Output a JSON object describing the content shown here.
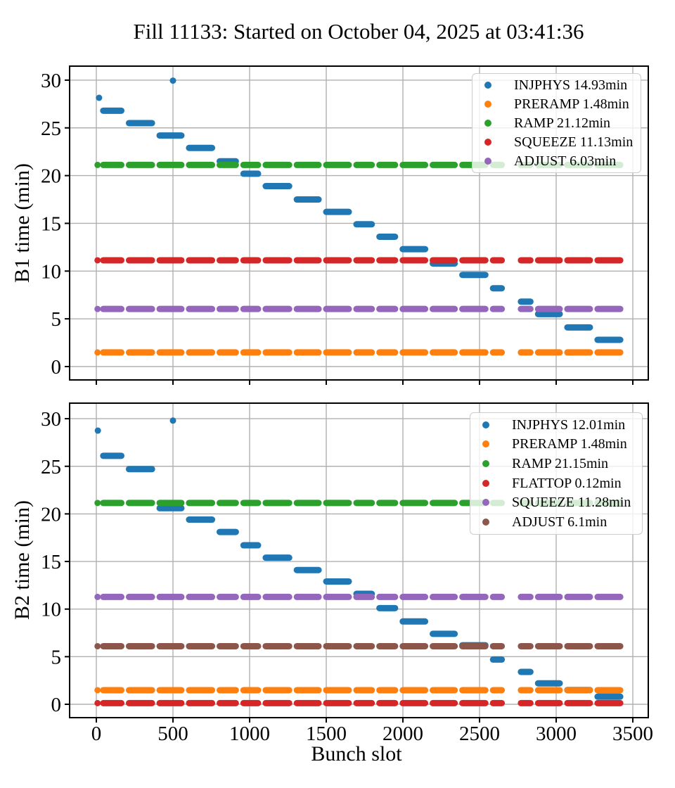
{
  "title": "Fill 11133: Started on October 04, 2025 at 03:41:36",
  "xlabel": "Bunch slot",
  "colors": {
    "background": "#ffffff",
    "grid": "#b0b0b0",
    "spine": "#000000"
  },
  "bunch_batches": [
    [
      45,
      163
    ],
    [
      213,
      363
    ],
    [
      413,
      555
    ],
    [
      605,
      755
    ],
    [
      805,
      910
    ],
    [
      960,
      1055
    ],
    [
      1105,
      1258
    ],
    [
      1308,
      1450
    ],
    [
      1500,
      1647
    ],
    [
      1697,
      1797
    ],
    [
      1847,
      1949
    ],
    [
      1999,
      2145
    ],
    [
      2195,
      2338
    ],
    [
      2388,
      2538
    ],
    [
      2588,
      2645
    ],
    [
      2770,
      2832
    ],
    [
      2882,
      3023
    ],
    [
      3073,
      3220
    ],
    [
      3270,
      3418
    ]
  ],
  "chart_data": [
    {
      "id": "b1",
      "type": "scatter",
      "ylabel": "B1 time (min)",
      "x_ticks": [
        0,
        500,
        1000,
        1500,
        2000,
        2500,
        3000,
        3500
      ],
      "y_ticks": [
        0,
        5,
        10,
        15,
        20,
        25,
        30
      ],
      "xlim": [
        -175,
        3600
      ],
      "ylim": [
        -1.5,
        31.5
      ],
      "grid": true,
      "legend_position": "upper right",
      "series": [
        {
          "name": "INJPHYS",
          "legend_label": "INJPHYS 14.93min",
          "color": "#1f77b4",
          "kind": "staircase",
          "lead_dot": [
            18,
            28.15
          ],
          "outlier": [
            500,
            29.95
          ],
          "step_y": [
            26.8,
            25.5,
            24.2,
            22.9,
            21.5,
            20.2,
            18.9,
            17.5,
            16.2,
            14.9,
            13.6,
            12.3,
            10.8,
            9.6,
            8.2,
            6.8,
            5.5,
            4.1,
            2.8
          ]
        },
        {
          "name": "PRERAMP",
          "legend_label": "PRERAMP 1.48min",
          "color": "#ff7f0e",
          "kind": "hline",
          "y": 1.48
        },
        {
          "name": "RAMP",
          "legend_label": "RAMP 21.12min",
          "color": "#2ca02c",
          "kind": "hline",
          "y": 21.12
        },
        {
          "name": "SQUEEZE",
          "legend_label": "SQUEEZE 11.13min",
          "color": "#d62728",
          "kind": "hline",
          "y": 11.13
        },
        {
          "name": "ADJUST",
          "legend_label": "ADJUST 6.03min",
          "color": "#9467bd",
          "kind": "hline",
          "y": 6.03
        }
      ]
    },
    {
      "id": "b2",
      "type": "scatter",
      "ylabel": "B2 time (min)",
      "x_ticks": [
        0,
        500,
        1000,
        1500,
        2000,
        2500,
        3000,
        3500
      ],
      "y_ticks": [
        0,
        5,
        10,
        15,
        20,
        25,
        30
      ],
      "xlim": [
        -175,
        3600
      ],
      "ylim": [
        -1.5,
        31.5
      ],
      "grid": true,
      "legend_position": "upper right",
      "series": [
        {
          "name": "INJPHYS",
          "legend_label": "INJPHYS 12.01min",
          "color": "#1f77b4",
          "kind": "staircase",
          "lead_dot": [
            10,
            28.75
          ],
          "outlier": [
            500,
            29.8
          ],
          "step_y": [
            26.1,
            24.7,
            20.6,
            19.4,
            18.1,
            16.7,
            15.4,
            14.1,
            12.9,
            11.6,
            10.1,
            8.7,
            7.4,
            6.2,
            4.7,
            3.4,
            2.2,
            1.5,
            0.8
          ]
        },
        {
          "name": "PRERAMP",
          "legend_label": "PRERAMP 1.48min",
          "color": "#ff7f0e",
          "kind": "hline",
          "y": 1.48
        },
        {
          "name": "RAMP",
          "legend_label": "RAMP 21.15min",
          "color": "#2ca02c",
          "kind": "hline",
          "y": 21.15
        },
        {
          "name": "FLATTOP",
          "legend_label": "FLATTOP 0.12min",
          "color": "#d62728",
          "kind": "hline",
          "y": 0.12
        },
        {
          "name": "SQUEEZE",
          "legend_label": "SQUEEZE 11.28min",
          "color": "#9467bd",
          "kind": "hline",
          "y": 11.28
        },
        {
          "name": "ADJUST",
          "legend_label": "ADJUST 6.1min",
          "color": "#8c564b",
          "kind": "hline",
          "y": 6.1
        }
      ]
    }
  ]
}
